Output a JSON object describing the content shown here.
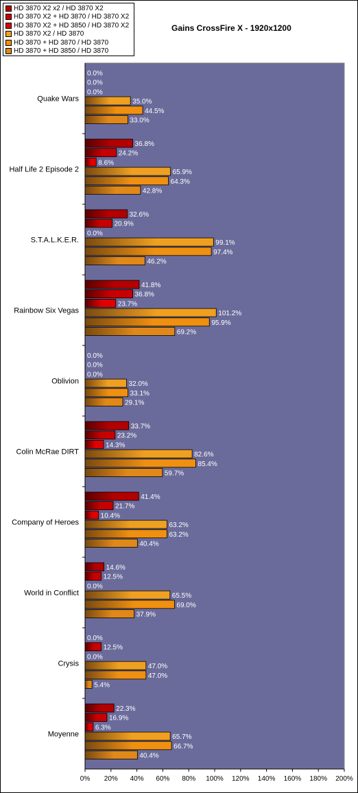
{
  "chart_data": {
    "type": "bar",
    "orientation": "horizontal",
    "title": "Gains CrossFire X - 1920x1200",
    "categories": [
      "Quake Wars",
      "Half Life 2 Episode 2",
      "S.T.A.L.K.E.R.",
      "Rainbow Six Vegas",
      "Oblivion",
      "Colin McRae DIRT",
      "Company of Heroes",
      "World in Conflict",
      "Crysis",
      "Moyenne"
    ],
    "series": [
      {
        "name": "HD 3870 X2 x2 / HD 3870 X2",
        "color": "#b30000",
        "values": [
          0.0,
          36.8,
          32.6,
          41.8,
          0.0,
          33.7,
          41.4,
          14.6,
          0.0,
          22.3
        ],
        "labels": [
          "0.0%",
          "36.8%",
          "32.6%",
          "41.8%",
          "0.0%",
          "33.7%",
          "41.4%",
          "14.6%",
          "0.0%",
          "22.3%"
        ]
      },
      {
        "name": "HD 3870 X2 + HD 3870 / HD 3870 X2",
        "color": "#c80000",
        "values": [
          0.0,
          24.2,
          20.9,
          36.8,
          0.0,
          23.2,
          21.7,
          12.5,
          12.5,
          16.9
        ],
        "labels": [
          "0.0%",
          "24.2%",
          "20.9%",
          "36.8%",
          "0.0%",
          "23.2%",
          "21.7%",
          "12.5%",
          "12.5%",
          "16.9%"
        ]
      },
      {
        "name": "HD 3870 X2 + HD 3850 / HD 3870 X2",
        "color": "#e00000",
        "values": [
          0.0,
          8.6,
          0.0,
          23.7,
          0.0,
          14.3,
          10.4,
          0.0,
          0.0,
          6.3
        ],
        "labels": [
          "0.0%",
          "8.6%",
          "0.0%",
          "23.7%",
          "0.0%",
          "14.3%",
          "10.4%",
          "0.0%",
          "0.0%",
          "6.3%"
        ]
      },
      {
        "name": "HD 3870 X2 / HD 3870",
        "color": "#f0a020",
        "values": [
          35.0,
          65.9,
          99.1,
          101.2,
          32.0,
          82.6,
          63.2,
          65.5,
          47.0,
          65.7
        ],
        "labels": [
          "35.0%",
          "65.9%",
          "99.1%",
          "101.2%",
          "32.0%",
          "82.6%",
          "63.2%",
          "65.5%",
          "47.0%",
          "65.7%"
        ]
      },
      {
        "name": "HD 3870 + HD 3870 / HD 3870",
        "color": "#f09010",
        "values": [
          44.5,
          64.3,
          97.4,
          95.9,
          33.1,
          85.4,
          63.2,
          69.0,
          47.0,
          66.7
        ],
        "labels": [
          "44.5%",
          "64.3%",
          "97.4%",
          "95.9%",
          "33.1%",
          "85.4%",
          "63.2%",
          "69.0%",
          "47.0%",
          "66.7%"
        ]
      },
      {
        "name": "HD 3870 + HD 3850 / HD 3870",
        "color": "#e08818",
        "values": [
          33.0,
          42.8,
          46.2,
          69.2,
          29.1,
          59.7,
          40.4,
          37.9,
          5.4,
          40.4
        ],
        "labels": [
          "33.0%",
          "42.8%",
          "46.2%",
          "69.2%",
          "29.1%",
          "59.7%",
          "40.4%",
          "37.9%",
          "5.4%",
          "40.4%"
        ]
      }
    ],
    "x_ticks": [
      "0%",
      "20%",
      "40%",
      "60%",
      "80%",
      "100%",
      "120%",
      "140%",
      "160%",
      "180%",
      "200%"
    ],
    "xlim": [
      0,
      200
    ],
    "plot_background": "#6b6b9b",
    "grid": false,
    "legend_position": "top-left"
  }
}
